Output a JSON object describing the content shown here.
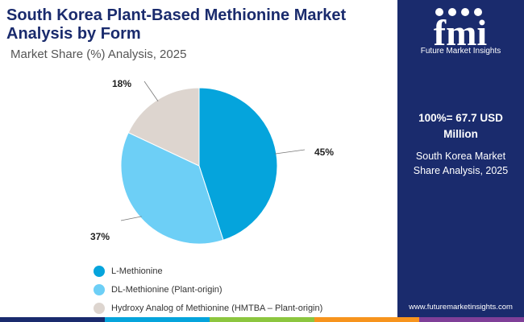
{
  "header": {
    "title": "South Korea Plant-Based Methionine Market Analysis by Form",
    "subtitle": "Market Share (%) Analysis, 2025"
  },
  "chart_data": {
    "type": "pie",
    "categories": [
      "L-Methionine",
      "DL-Methionine (Plant-origin)",
      "Hydroxy Analog of Methionine (HMTBA – Plant-origin)"
    ],
    "values": [
      45,
      37,
      18
    ],
    "labels": [
      "45%",
      "37%",
      "18%"
    ],
    "colors": [
      "#05a4dc",
      "#6dcff6",
      "#ddd5cf"
    ],
    "legend_position": "bottom-left"
  },
  "sidebar": {
    "logo_text": "fmi",
    "logo_tagline": "Future Market Insights",
    "total": "100%= 67.7 USD Million",
    "description": "South Korea Market Share Analysis, 2025",
    "url": "www.futuremarketinsights.com"
  },
  "colors": {
    "title": "#1a2b6d",
    "sidebar": "#1a2b6d",
    "bottom_bar": [
      "#1a2b6d",
      "#05a4dc",
      "#8cc63f",
      "#f7941d",
      "#7f3f98"
    ]
  }
}
